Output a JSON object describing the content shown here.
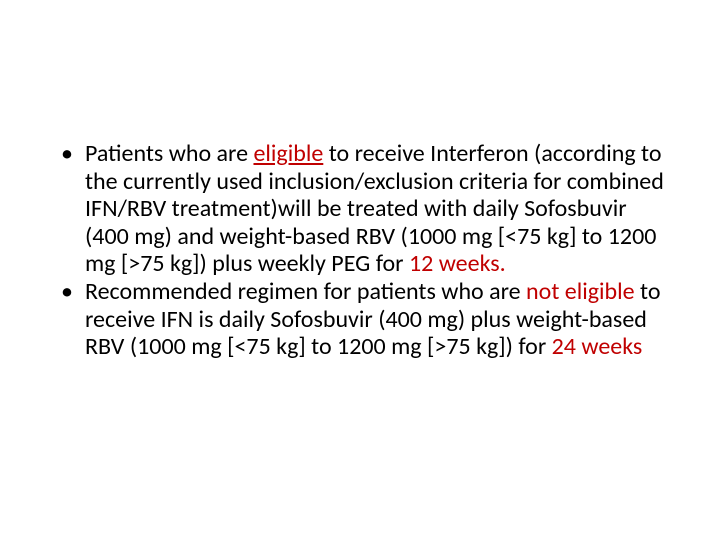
{
  "slide": {
    "background": "#ffffff",
    "text_color": "#000000",
    "highlight_color": "#c00000",
    "font_family": "Calibri",
    "font_size_pt": 24,
    "line_height": 1.15,
    "bullets": [
      {
        "segments": [
          {
            "text": "Patients who are ",
            "red": false,
            "underline": false
          },
          {
            "text": "eligible",
            "red": true,
            "underline": true
          },
          {
            "text": " to receive Interferon (according to the currently used inclusion/exclusion criteria for combined IFN/RBV treatment)will be treated with daily Sofosbuvir (400 mg) and weight-based RBV (1000 mg [<75 kg] to 1200 mg [>75 kg]) plus weekly PEG for ",
            "red": false,
            "underline": false
          },
          {
            "text": "12 weeks.",
            "red": true,
            "underline": false
          }
        ],
        "leading_space": false
      },
      {
        "segments": [
          {
            "text": " Recommended regimen for patients who are ",
            "red": false,
            "underline": false
          },
          {
            "text": "not eligible ",
            "red": true,
            "underline": false
          },
          {
            "text": "to receive IFN is daily Sofosbuvir (400 mg) plus weight-based RBV (1000 mg [<75 kg] to 1200 mg [>75 kg]) for ",
            "red": false,
            "underline": false
          },
          {
            "text": "24 weeks",
            "red": true,
            "underline": false
          }
        ],
        "leading_space": true
      }
    ]
  }
}
